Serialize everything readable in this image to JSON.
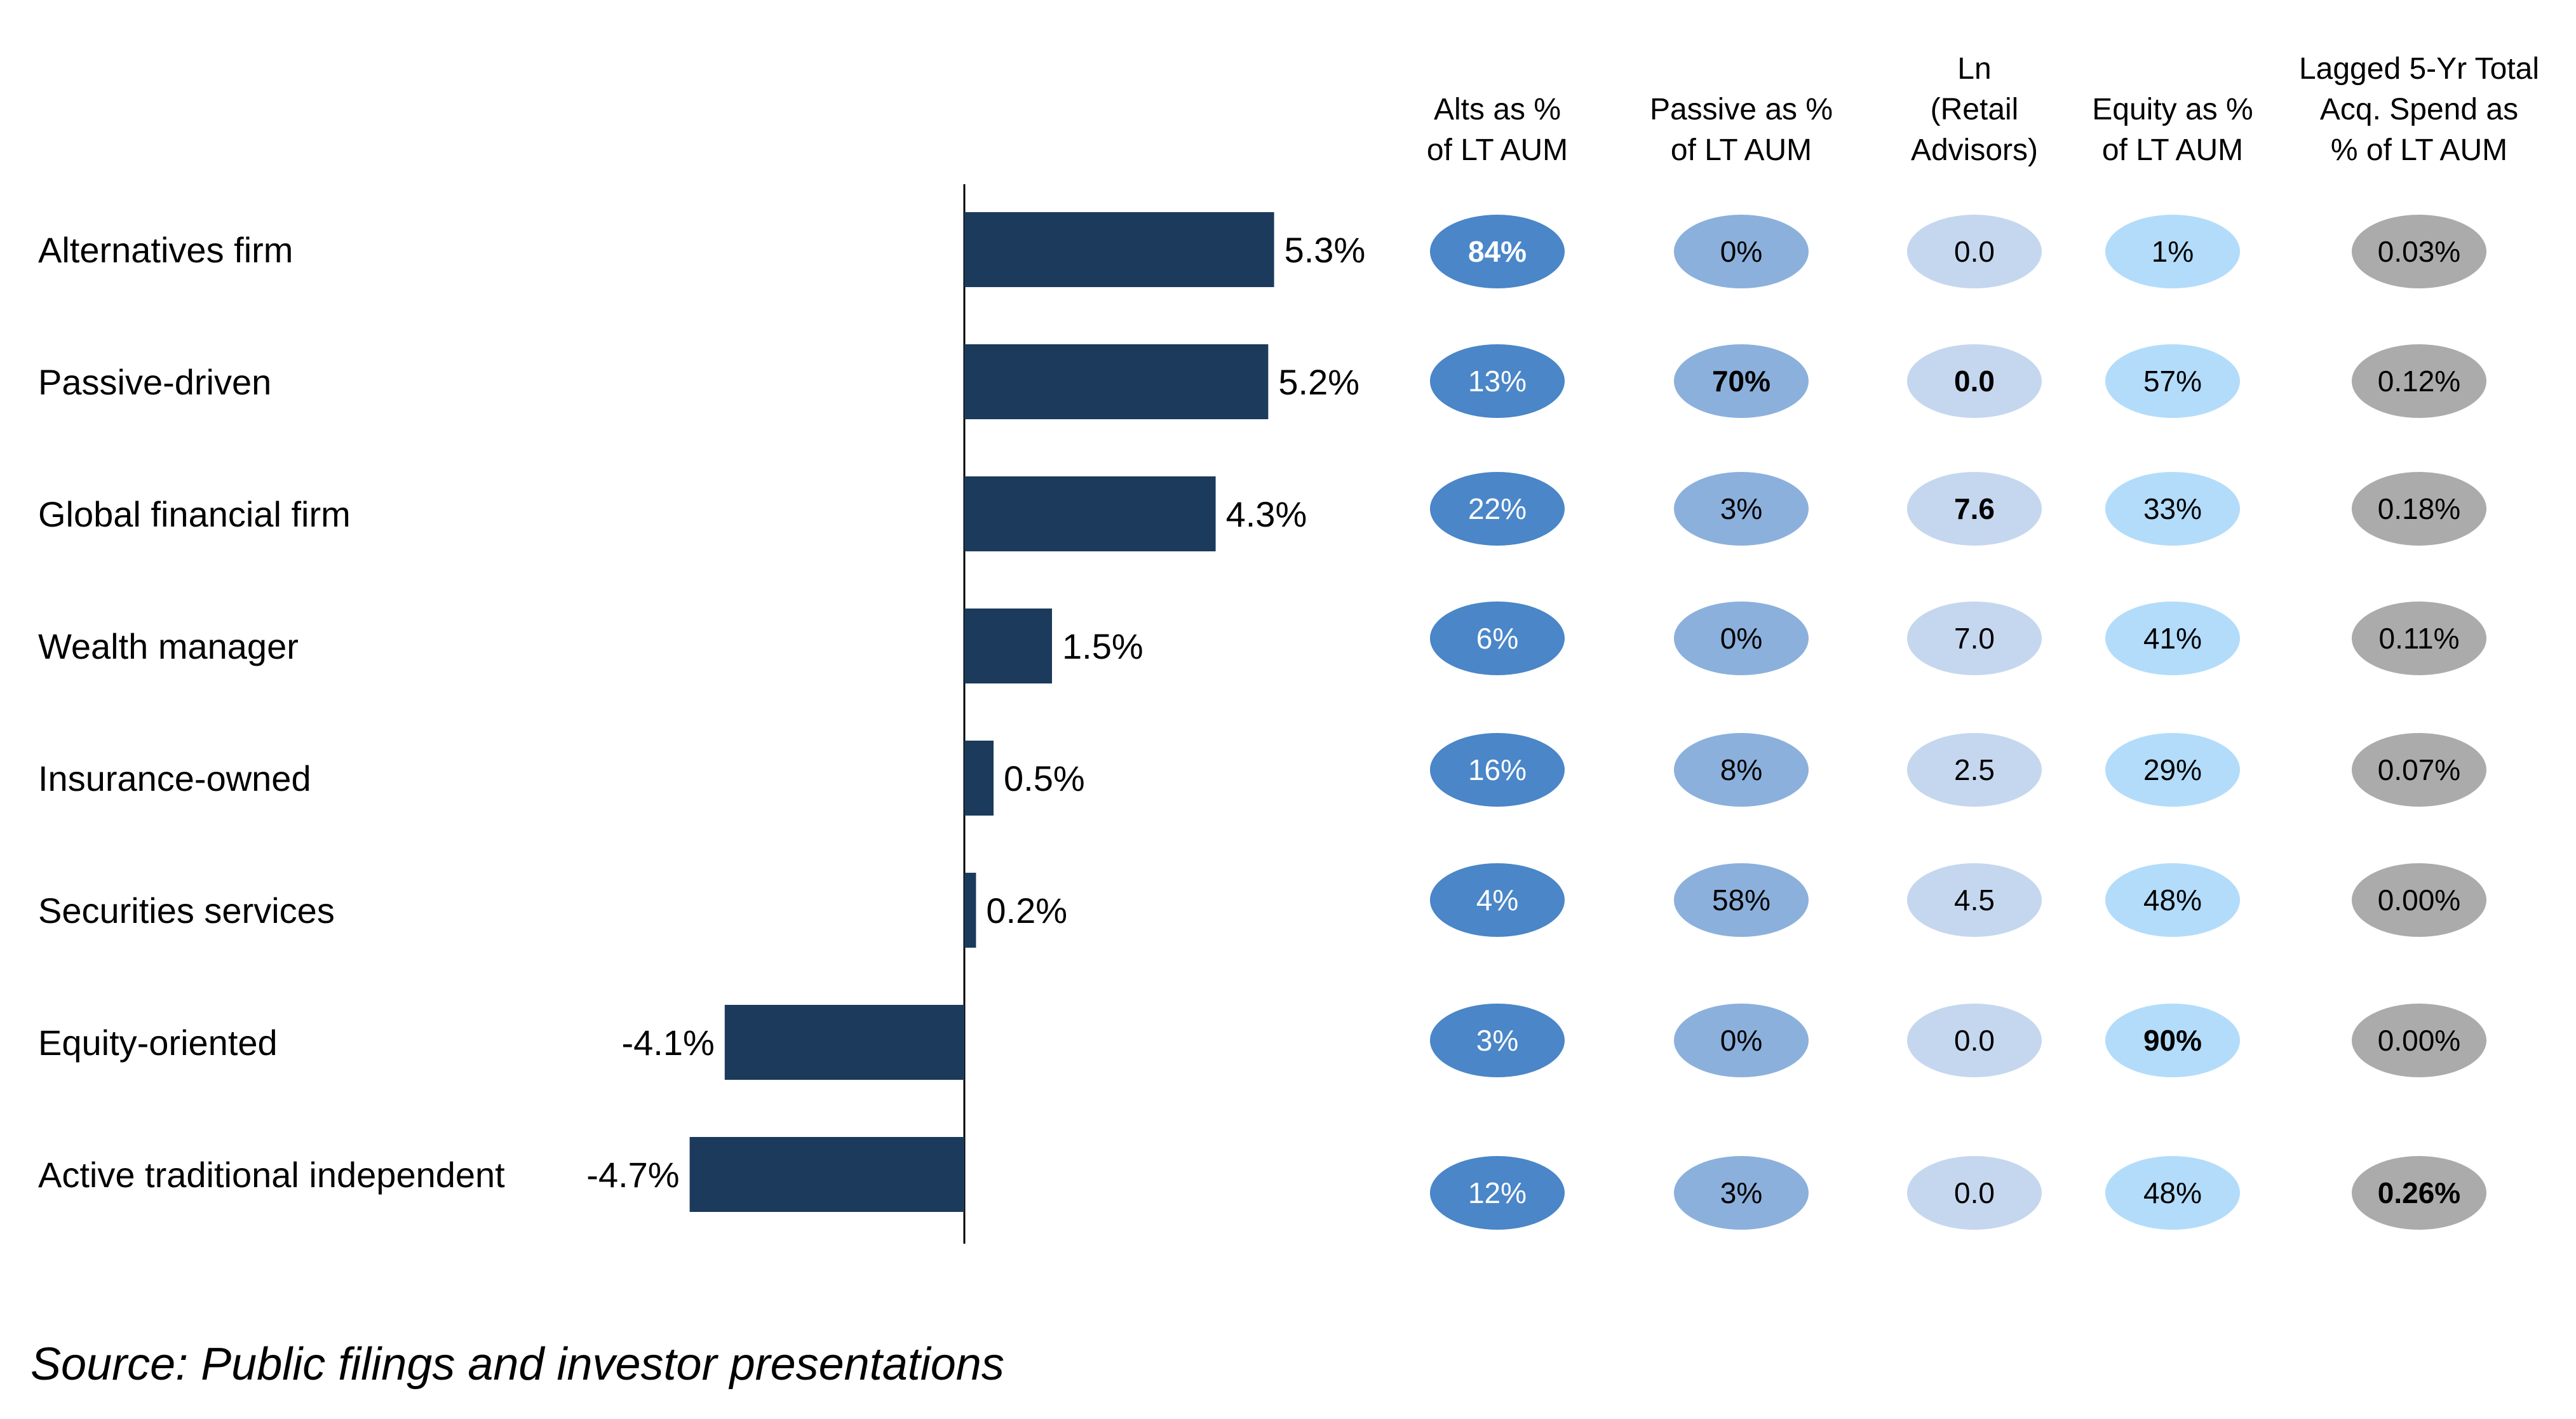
{
  "chart_data": {
    "type": "bar",
    "orientation": "horizontal",
    "categories": [
      "Alternatives firm",
      "Passive-driven",
      "Global financial firm",
      "Wealth manager",
      "Insurance-owned",
      "Securities services",
      "Equity-oriented",
      "Active traditional independent"
    ],
    "values": [
      5.3,
      5.2,
      4.3,
      1.5,
      0.5,
      0.2,
      -4.1,
      -4.7
    ],
    "value_labels": [
      "5.3%",
      "5.2%",
      "4.3%",
      "1.5%",
      "0.5%",
      "0.2%",
      "-4.1%",
      "-4.7%"
    ],
    "xlim": [
      -4.7,
      5.3
    ],
    "bar_color": "#1b3a5c",
    "grid": false,
    "table": {
      "columns": [
        {
          "header": [
            "Alts as %",
            "of LT AUM"
          ],
          "color": "#4a86c8",
          "text_color": "#ffffff",
          "values": [
            "84%",
            "13%",
            "22%",
            "6%",
            "16%",
            "4%",
            "3%",
            "12%"
          ],
          "bold_index": 0
        },
        {
          "header": [
            "Passive as %",
            "of LT AUM"
          ],
          "color": "#8bb0dc",
          "text_color": "#000000",
          "values": [
            "0%",
            "70%",
            "3%",
            "0%",
            "8%",
            "58%",
            "0%",
            "3%"
          ],
          "bold_index": 1
        },
        {
          "header": [
            "Ln",
            "(Retail",
            "Advisors)"
          ],
          "color": "#c5d7ef",
          "text_color": "#000000",
          "values": [
            "0.0",
            "0.0",
            "7.6",
            "7.0",
            "2.5",
            "4.5",
            "0.0",
            "0.0"
          ],
          "bold_index": [
            1,
            2
          ]
        },
        {
          "header": [
            "Equity as %",
            "of LT AUM"
          ],
          "color": "#b3dcfa",
          "text_color": "#000000",
          "values": [
            "1%",
            "57%",
            "33%",
            "41%",
            "29%",
            "48%",
            "90%",
            "48%"
          ],
          "bold_index": 6
        },
        {
          "header": [
            "Lagged 5-Yr Total",
            "Acq. Spend as",
            "% of LT AUM"
          ],
          "color": "#ababab",
          "text_color": "#000000",
          "values": [
            "0.03%",
            "0.12%",
            "0.18%",
            "0.11%",
            "0.07%",
            "0.00%",
            "0.00%",
            "0.26%"
          ],
          "bold_index": 7
        }
      ]
    }
  },
  "source": "Source: Public filings and investor presentations"
}
